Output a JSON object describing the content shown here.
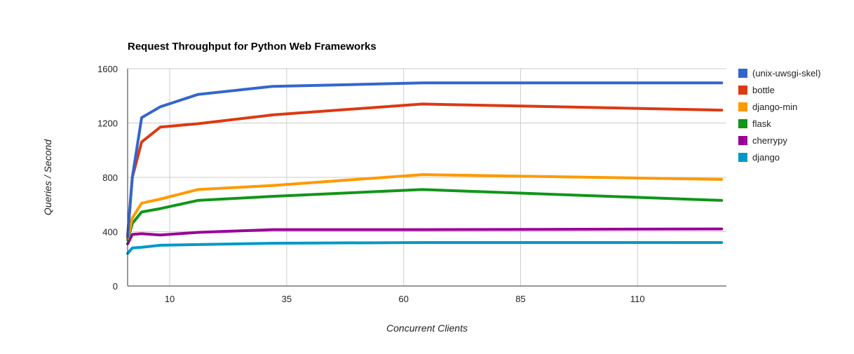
{
  "chart_data": {
    "type": "line",
    "title": "Request Throughput for Python Web Frameworks",
    "xlabel": "Concurrent Clients",
    "ylabel": "Queries / Second",
    "xlim": [
      1,
      129
    ],
    "ylim": [
      0,
      1600
    ],
    "x_ticks": [
      10,
      35,
      60,
      85,
      110
    ],
    "y_ticks": [
      0,
      400,
      800,
      1200,
      1600
    ],
    "grid": true,
    "legend_position": "right",
    "x": [
      1,
      2,
      4,
      8,
      16,
      32,
      64,
      128
    ],
    "series": [
      {
        "name": "(unix-uwsgi-skel)",
        "color": "#3366cc",
        "values": [
          360,
          800,
          1240,
          1320,
          1410,
          1470,
          1495,
          1495
        ]
      },
      {
        "name": "bottle",
        "color": "#dc3912",
        "values": [
          370,
          800,
          1060,
          1170,
          1195,
          1260,
          1340,
          1295
        ]
      },
      {
        "name": "django-min",
        "color": "#ff9900",
        "values": [
          350,
          500,
          610,
          640,
          710,
          740,
          820,
          785
        ]
      },
      {
        "name": "flask",
        "color": "#109618",
        "values": [
          340,
          460,
          545,
          570,
          630,
          660,
          710,
          630
        ]
      },
      {
        "name": "cherrypy",
        "color": "#990099",
        "values": [
          310,
          380,
          385,
          375,
          395,
          415,
          415,
          420
        ]
      },
      {
        "name": "django",
        "color": "#0099c6",
        "values": [
          240,
          280,
          285,
          300,
          305,
          315,
          320,
          320
        ]
      }
    ]
  }
}
